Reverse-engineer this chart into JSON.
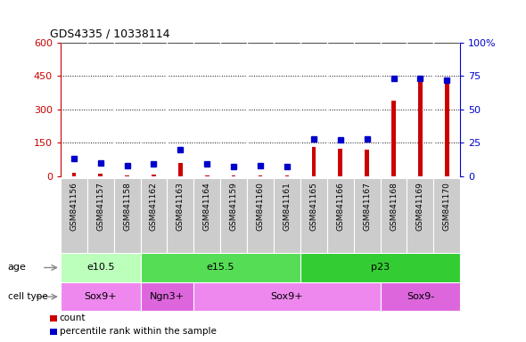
{
  "title": "GDS4335 / 10338114",
  "samples": [
    "GSM841156",
    "GSM841157",
    "GSM841158",
    "GSM841162",
    "GSM841163",
    "GSM841164",
    "GSM841159",
    "GSM841160",
    "GSM841161",
    "GSM841165",
    "GSM841166",
    "GSM841167",
    "GSM841168",
    "GSM841169",
    "GSM841170"
  ],
  "counts": [
    15,
    12,
    5,
    8,
    60,
    5,
    3,
    3,
    3,
    130,
    125,
    120,
    340,
    450,
    440
  ],
  "percentiles": [
    13,
    10,
    8,
    9,
    20,
    9,
    7,
    8,
    7,
    28,
    27,
    28,
    73,
    73,
    72
  ],
  "ylim_left": [
    0,
    600
  ],
  "ylim_right": [
    0,
    100
  ],
  "yticks_left": [
    0,
    150,
    300,
    450,
    600
  ],
  "yticks_right": [
    0,
    25,
    50,
    75,
    100
  ],
  "age_groups": [
    {
      "label": "e10.5",
      "start": 0,
      "end": 3,
      "color": "#bbffbb"
    },
    {
      "label": "e15.5",
      "start": 3,
      "end": 9,
      "color": "#55dd55"
    },
    {
      "label": "p23",
      "start": 9,
      "end": 15,
      "color": "#33cc33"
    }
  ],
  "cell_type_groups": [
    {
      "label": "Sox9+",
      "start": 0,
      "end": 3,
      "color": "#ee88ee"
    },
    {
      "label": "Ngn3+",
      "start": 3,
      "end": 5,
      "color": "#dd66dd"
    },
    {
      "label": "Sox9+",
      "start": 5,
      "end": 12,
      "color": "#ee88ee"
    },
    {
      "label": "Sox9-",
      "start": 12,
      "end": 15,
      "color": "#dd66dd"
    }
  ],
  "bar_color_red": "#cc0000",
  "bar_color_blue": "#0000cc",
  "col_bg": "#cccccc",
  "plot_bg": "#ffffff",
  "red_tick_color": "#cc0000",
  "blue_tick_color": "#0000cc"
}
